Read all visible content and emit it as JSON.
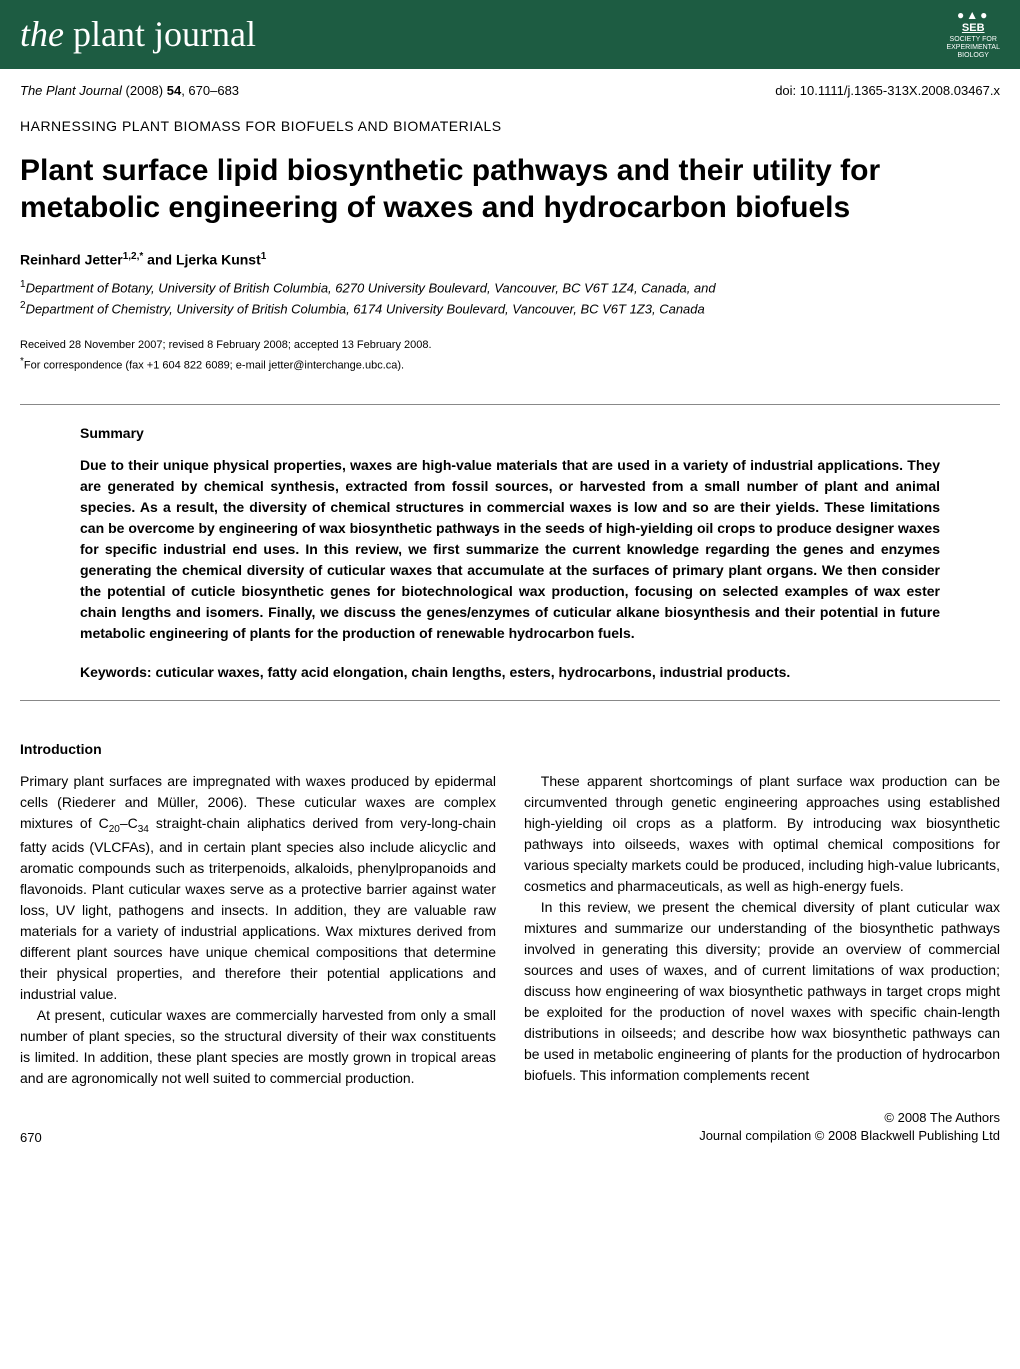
{
  "header": {
    "logo_the": "the",
    "logo_plant": "plant",
    "logo_journal": "journal",
    "seb": {
      "icons": "●▲●",
      "text": "SEB",
      "line1": "SOCIETY FOR",
      "line2": "EXPERIMENTAL",
      "line3": "BIOLOGY"
    }
  },
  "meta": {
    "journal": "The Plant Journal",
    "year": "(2008)",
    "volume": "54",
    "pages": ", 670–683",
    "doi": "doi: 10.1111/j.1365-313X.2008.03467.x"
  },
  "section_label": "HARNESSING PLANT BIOMASS FOR BIOFUELS AND BIOMATERIALS",
  "title": "Plant surface lipid biosynthetic pathways and their utility for metabolic engineering of waxes and hydrocarbon biofuels",
  "authors_html": "Reinhard Jetter<sup>1,2,*</sup> and Ljerka Kunst<sup>1</sup>",
  "affiliations": {
    "a1": "Department of Botany, University of British Columbia, 6270 University Boulevard, Vancouver, BC V6T 1Z4, Canada, and",
    "a2": "Department of Chemistry, University of British Columbia, 6174 University Boulevard, Vancouver, BC V6T 1Z3, Canada"
  },
  "dates": {
    "received": "Received 28 November 2007; revised 8 February 2008; accepted 13 February 2008.",
    "correspondence": "For correspondence (fax +1 604 822 6089; e-mail jetter@interchange.ubc.ca)."
  },
  "summary": {
    "heading": "Summary",
    "text": "Due to their unique physical properties, waxes are high-value materials that are used in a variety of industrial applications. They are generated by chemical synthesis, extracted from fossil sources, or harvested from a small number of plant and animal species. As a result, the diversity of chemical structures in commercial waxes is low and so are their yields. These limitations can be overcome by engineering of wax biosynthetic pathways in the seeds of high-yielding oil crops to produce designer waxes for specific industrial end uses. In this review, we first summarize the current knowledge regarding the genes and enzymes generating the chemical diversity of cuticular waxes that accumulate at the surfaces of primary plant organs. We then consider the potential of cuticle biosynthetic genes for biotechnological wax production, focusing on selected examples of wax ester chain lengths and isomers. Finally, we discuss the genes/enzymes of cuticular alkane biosynthesis and their potential in future metabolic engineering of plants for the production of renewable hydrocarbon fuels.",
    "keywords_label": "Keywords:",
    "keywords": "cuticular waxes, fatty acid elongation, chain lengths, esters, hydrocarbons, industrial products."
  },
  "intro": {
    "heading": "Introduction",
    "p1_pre": "Primary plant surfaces are impregnated with waxes produced by epidermal cells (Riederer and Müller, 2006). These cuticular waxes are complex mixtures of C",
    "p1_sub1": "20",
    "p1_mid": "–C",
    "p1_sub2": "34",
    "p1_post": " straight-chain aliphatics derived from very-long-chain fatty acids (VLCFAs), and in certain plant species also include alicyclic and aromatic compounds such as triterpenoids, alkaloids, phenylpropanoids and flavonoids. Plant cuticular waxes serve as a protective barrier against water loss, UV light, pathogens and insects. In addition, they are valuable raw materials for a variety of industrial applications. Wax mixtures derived from different plant sources have unique chemical compositions that determine their physical properties, and therefore their potential applications and industrial value.",
    "p2": "At present, cuticular waxes are commercially harvested from only a small number of plant species, so the structural diversity of their wax constituents is limited. In addition, these plant species are mostly grown in tropical areas and are agronomically not well suited to commercial production.",
    "p3": "These apparent shortcomings of plant surface wax production can be circumvented through genetic engineering approaches using established high-yielding oil crops as a platform. By introducing wax biosynthetic pathways into oilseeds, waxes with optimal chemical compositions for various specialty markets could be produced, including high-value lubricants, cosmetics and pharmaceuticals, as well as high-energy fuels.",
    "p4": "In this review, we present the chemical diversity of plant cuticular wax mixtures and summarize our understanding of the biosynthetic pathways involved in generating this diversity; provide an overview of commercial sources and uses of waxes, and of current limitations of wax production; discuss how engineering of wax biosynthetic pathways in target crops might be exploited for the production of novel waxes with specific chain-length distributions in oilseeds; and describe how wax biosynthetic pathways can be used in metabolic engineering of plants for the production of hydrocarbon biofuels. This information complements recent"
  },
  "footer": {
    "page": "670",
    "copyright1": "© 2008 The Authors",
    "copyright2": "Journal compilation © 2008 Blackwell Publishing Ltd"
  },
  "colors": {
    "banner_bg": "#1d5c42",
    "text": "#000000",
    "divider": "#888888"
  }
}
